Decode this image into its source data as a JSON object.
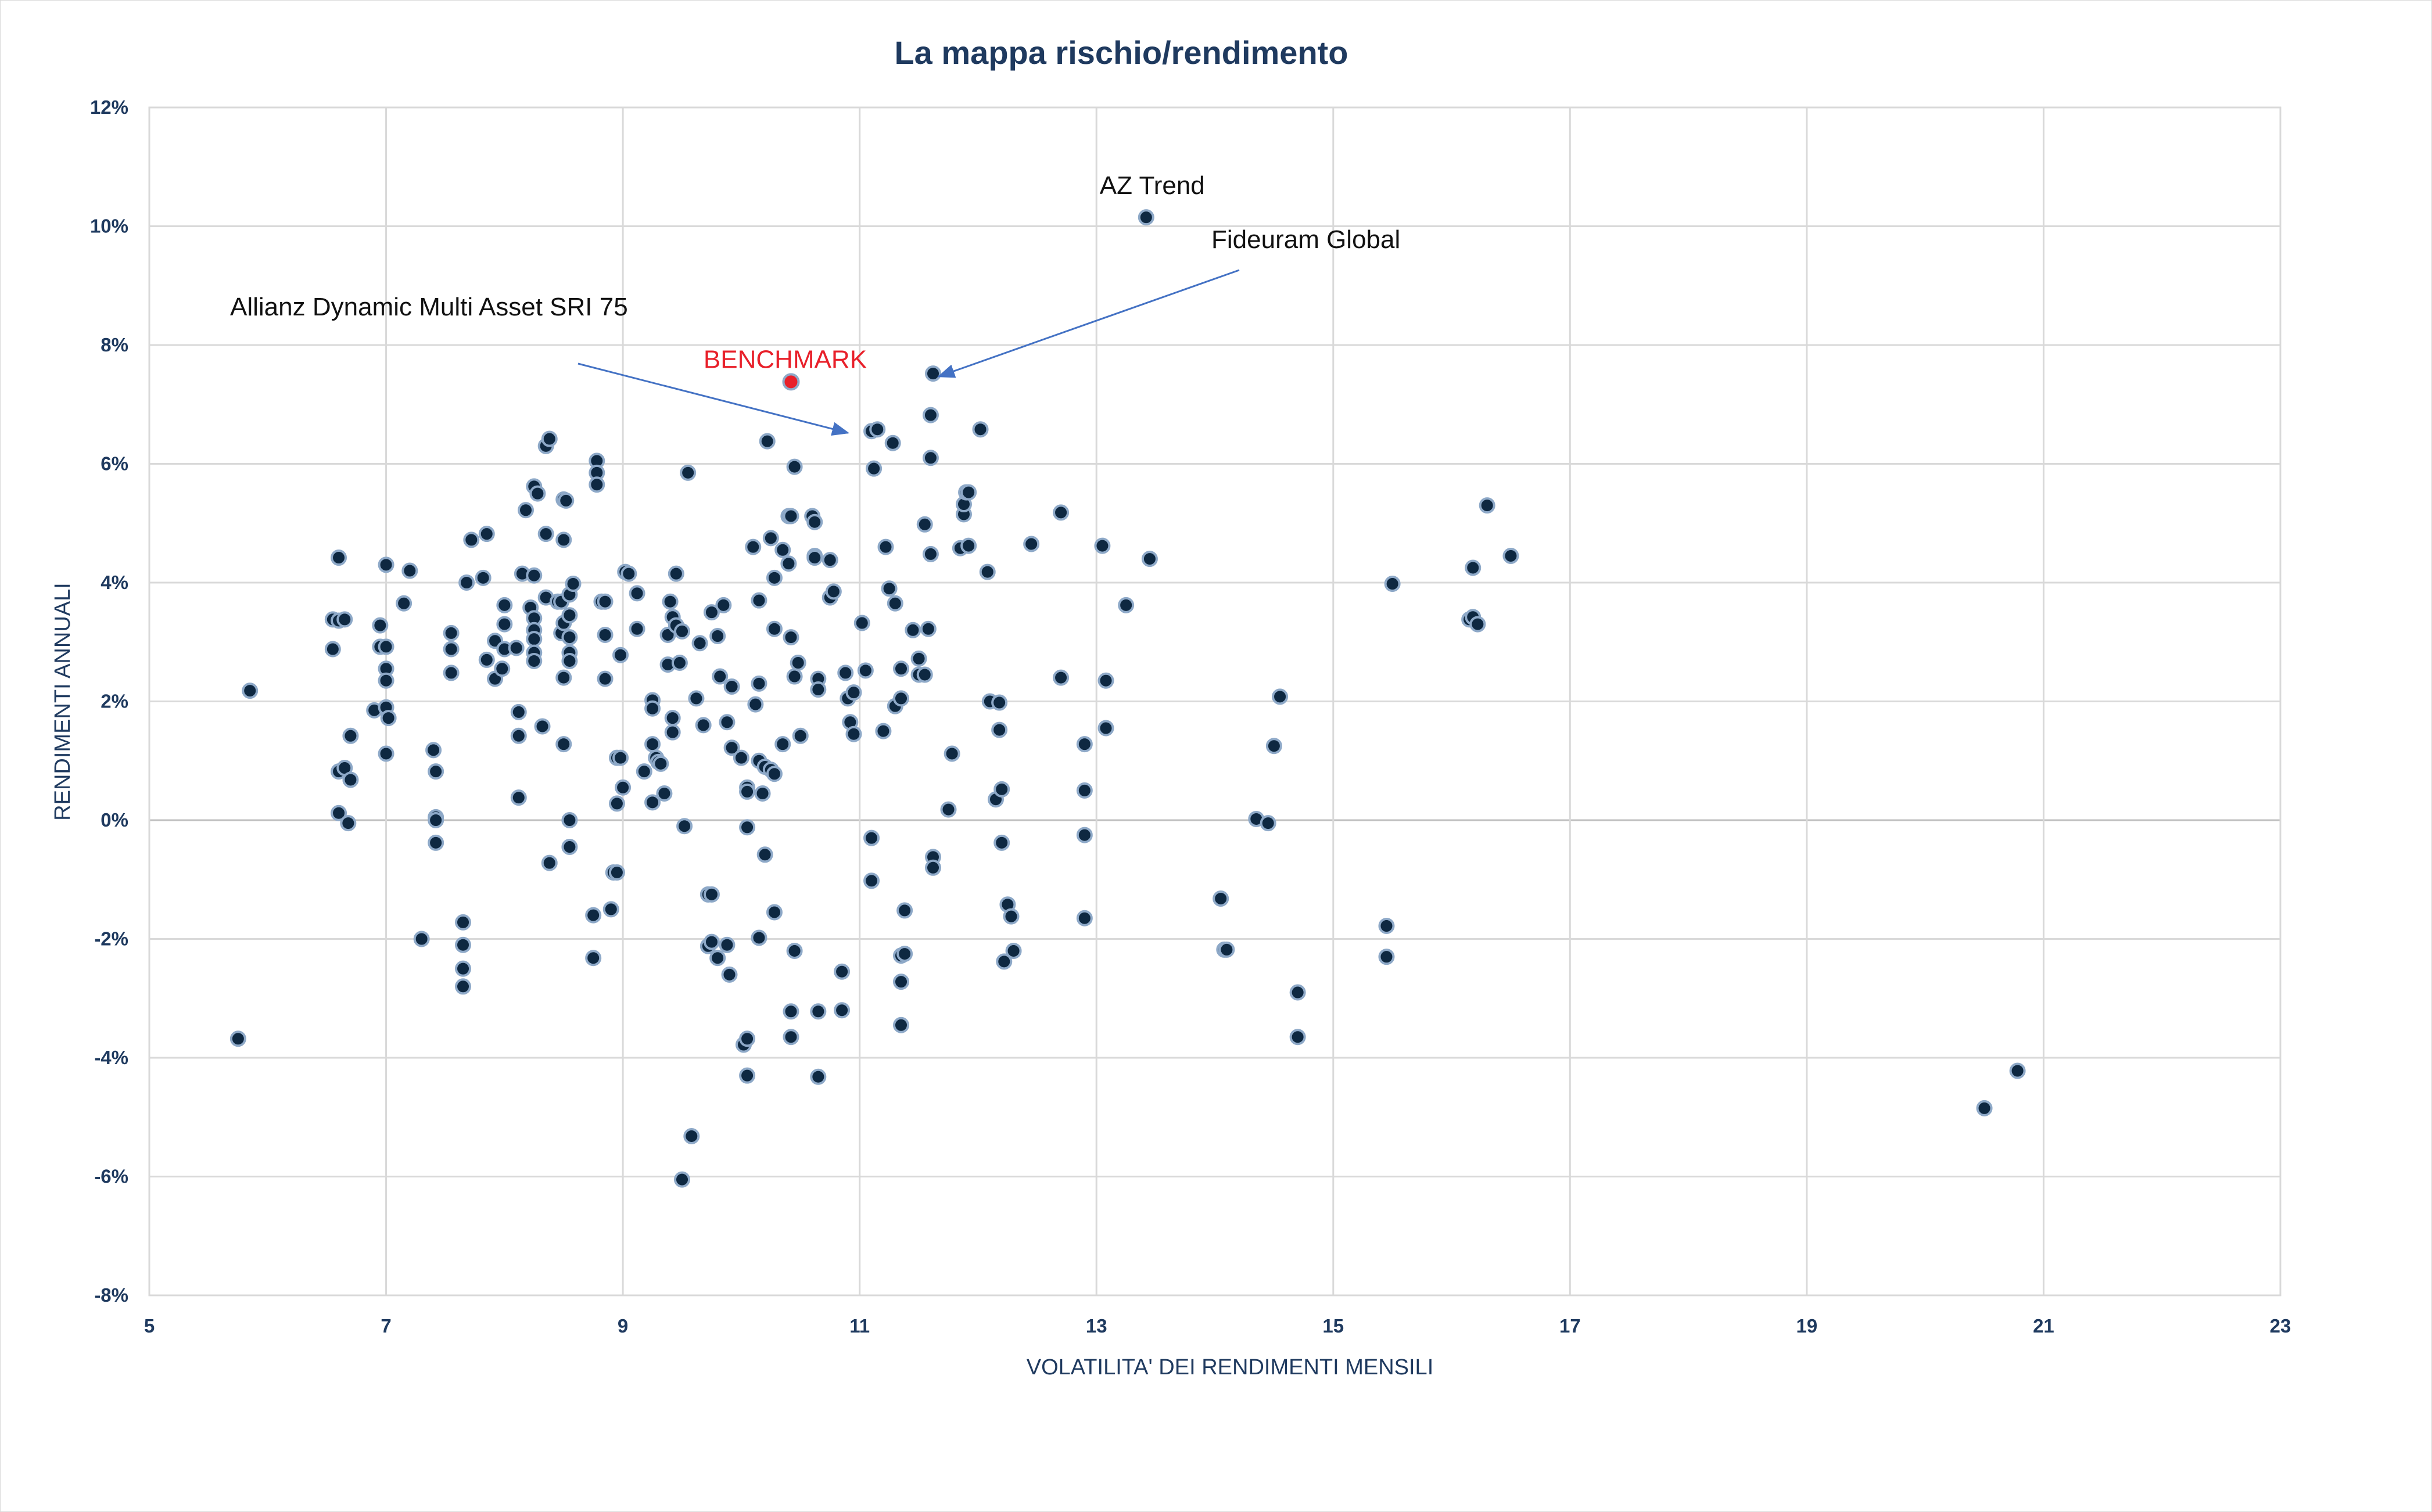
{
  "chart_data": {
    "type": "scatter",
    "title": "La mappa rischio/rendimento",
    "xlabel": "VOLATILITA' DEI RENDIMENTI MENSILI",
    "ylabel": "RENDIMENTI ANNUALI",
    "xlim": [
      5,
      23
    ],
    "ylim": [
      -8,
      12
    ],
    "x_ticks": [
      5,
      7,
      9,
      11,
      13,
      15,
      17,
      19,
      21,
      23
    ],
    "y_ticks": [
      -8,
      -6,
      -4,
      -2,
      0,
      2,
      4,
      6,
      8,
      10,
      12
    ],
    "x_tick_labels": [
      "5",
      "7",
      "9",
      "11",
      "13",
      "15",
      "17",
      "19",
      "21",
      "23"
    ],
    "y_tick_labels": [
      "-8%",
      "-6%",
      "-4%",
      "-2%",
      "0%",
      "2%",
      "4%",
      "6%",
      "8%",
      "10%",
      "12%"
    ],
    "grid": true,
    "colors": {
      "title": "#1f3a5f",
      "axis_text": "#1f3a5f",
      "marker_fill": "#0e2841",
      "marker_stroke": "#8ea9c8",
      "benchmark": "#e8202a",
      "arrow": "#4472c4",
      "grid": "#d9d9d9"
    },
    "series": [
      {
        "points": [
          [
            5.75,
            -3.68
          ],
          [
            5.85,
            2.18
          ],
          [
            6.55,
            3.38
          ],
          [
            6.6,
            3.36
          ],
          [
            6.65,
            3.38
          ],
          [
            6.55,
            2.88
          ],
          [
            6.6,
            4.42
          ],
          [
            6.6,
            0.82
          ],
          [
            6.65,
            0.88
          ],
          [
            6.6,
            0.12
          ],
          [
            6.7,
            0.68
          ],
          [
            6.68,
            -0.05
          ],
          [
            6.7,
            1.42
          ],
          [
            6.9,
            1.85
          ],
          [
            6.95,
            2.92
          ],
          [
            6.95,
            3.28
          ],
          [
            7.0,
            4.3
          ],
          [
            7.0,
            2.92
          ],
          [
            7.0,
            2.55
          ],
          [
            7.0,
            2.35
          ],
          [
            7.0,
            1.9
          ],
          [
            7.02,
            1.72
          ],
          [
            7.0,
            1.12
          ],
          [
            7.15,
            3.65
          ],
          [
            7.2,
            4.2
          ],
          [
            7.3,
            -2.0
          ],
          [
            7.4,
            1.18
          ],
          [
            7.42,
            0.82
          ],
          [
            7.42,
            0.05
          ],
          [
            7.42,
            0.0
          ],
          [
            7.42,
            -0.38
          ],
          [
            7.55,
            3.15
          ],
          [
            7.55,
            2.88
          ],
          [
            7.55,
            2.48
          ],
          [
            7.65,
            -1.72
          ],
          [
            7.65,
            -2.1
          ],
          [
            7.65,
            -2.5
          ],
          [
            7.65,
            -2.8
          ],
          [
            7.68,
            4.0
          ],
          [
            7.72,
            4.72
          ],
          [
            7.82,
            4.08
          ],
          [
            7.85,
            4.82
          ],
          [
            7.85,
            2.7
          ],
          [
            7.92,
            2.38
          ],
          [
            7.92,
            3.02
          ],
          [
            8.0,
            2.88
          ],
          [
            7.98,
            2.55
          ],
          [
            8.0,
            3.62
          ],
          [
            8.0,
            3.3
          ],
          [
            8.1,
            2.9
          ],
          [
            8.12,
            1.82
          ],
          [
            8.12,
            1.42
          ],
          [
            8.12,
            0.38
          ],
          [
            8.18,
            5.22
          ],
          [
            8.15,
            4.15
          ],
          [
            8.25,
            5.62
          ],
          [
            8.28,
            5.5
          ],
          [
            8.25,
            4.12
          ],
          [
            8.22,
            3.58
          ],
          [
            8.25,
            3.4
          ],
          [
            8.25,
            3.2
          ],
          [
            8.25,
            3.05
          ],
          [
            8.25,
            2.82
          ],
          [
            8.25,
            2.68
          ],
          [
            8.32,
            1.58
          ],
          [
            8.35,
            6.3
          ],
          [
            8.38,
            6.42
          ],
          [
            8.35,
            4.82
          ],
          [
            8.35,
            3.75
          ],
          [
            8.38,
            -0.72
          ],
          [
            8.45,
            3.68
          ],
          [
            8.48,
            3.68
          ],
          [
            8.48,
            3.15
          ],
          [
            8.5,
            5.4
          ],
          [
            8.52,
            5.38
          ],
          [
            8.5,
            4.72
          ],
          [
            8.5,
            3.32
          ],
          [
            8.5,
            2.4
          ],
          [
            8.5,
            1.28
          ],
          [
            8.55,
            3.8
          ],
          [
            8.55,
            3.45
          ],
          [
            8.55,
            3.08
          ],
          [
            8.55,
            2.82
          ],
          [
            8.55,
            2.68
          ],
          [
            8.58,
            3.98
          ],
          [
            8.55,
            0.0
          ],
          [
            8.55,
            -0.45
          ],
          [
            8.75,
            -1.6
          ],
          [
            8.75,
            -2.32
          ],
          [
            8.78,
            6.05
          ],
          [
            8.78,
            5.85
          ],
          [
            8.78,
            5.65
          ],
          [
            8.82,
            3.68
          ],
          [
            8.85,
            3.68
          ],
          [
            8.85,
            3.12
          ],
          [
            8.85,
            2.38
          ],
          [
            8.9,
            -1.5
          ],
          [
            8.92,
            -0.88
          ],
          [
            8.95,
            -0.88
          ],
          [
            8.95,
            1.05
          ],
          [
            8.98,
            1.05
          ],
          [
            8.98,
            2.78
          ],
          [
            8.95,
            0.28
          ],
          [
            9.0,
            0.55
          ],
          [
            9.02,
            4.18
          ],
          [
            9.05,
            4.15
          ],
          [
            9.12,
            3.82
          ],
          [
            9.12,
            3.22
          ],
          [
            9.18,
            0.82
          ],
          [
            9.25,
            2.02
          ],
          [
            9.25,
            1.88
          ],
          [
            9.25,
            1.28
          ],
          [
            9.28,
            1.05
          ],
          [
            9.3,
            0.98
          ],
          [
            9.32,
            0.95
          ],
          [
            9.25,
            0.3
          ],
          [
            9.35,
            0.45
          ],
          [
            9.38,
            2.62
          ],
          [
            9.4,
            3.68
          ],
          [
            9.42,
            3.42
          ],
          [
            9.38,
            3.12
          ],
          [
            9.45,
            3.28
          ],
          [
            9.42,
            1.72
          ],
          [
            9.42,
            1.48
          ],
          [
            9.45,
            4.15
          ],
          [
            9.48,
            2.65
          ],
          [
            9.5,
            3.18
          ],
          [
            9.5,
            -6.05
          ],
          [
            9.55,
            5.85
          ],
          [
            9.52,
            -0.1
          ],
          [
            9.58,
            -5.32
          ],
          [
            9.62,
            2.05
          ],
          [
            9.65,
            2.98
          ],
          [
            9.68,
            1.6
          ],
          [
            9.72,
            -1.25
          ],
          [
            9.75,
            -1.25
          ],
          [
            9.72,
            -2.12
          ],
          [
            9.75,
            -2.05
          ],
          [
            9.8,
            -2.32
          ],
          [
            9.75,
            3.5
          ],
          [
            9.8,
            3.1
          ],
          [
            9.82,
            2.42
          ],
          [
            9.85,
            3.62
          ],
          [
            9.88,
            1.65
          ],
          [
            9.88,
            -2.1
          ],
          [
            9.9,
            -2.6
          ],
          [
            9.92,
            2.25
          ],
          [
            9.92,
            1.22
          ],
          [
            10.0,
            1.05
          ],
          [
            10.05,
            0.55
          ],
          [
            10.05,
            0.48
          ],
          [
            10.02,
            -3.78
          ],
          [
            10.05,
            -3.68
          ],
          [
            10.05,
            -4.3
          ],
          [
            10.05,
            -0.12
          ],
          [
            10.1,
            4.6
          ],
          [
            10.12,
            1.95
          ],
          [
            10.15,
            3.7
          ],
          [
            10.15,
            2.3
          ],
          [
            10.15,
            1.0
          ],
          [
            10.18,
            0.45
          ],
          [
            10.15,
            -1.98
          ],
          [
            10.2,
            0.9
          ],
          [
            10.2,
            -0.58
          ],
          [
            10.22,
            6.38
          ],
          [
            10.25,
            0.85
          ],
          [
            10.25,
            4.75
          ],
          [
            10.28,
            4.08
          ],
          [
            10.28,
            3.22
          ],
          [
            10.28,
            0.78
          ],
          [
            10.28,
            -1.55
          ],
          [
            10.35,
            4.55
          ],
          [
            10.35,
            1.28
          ],
          [
            10.4,
            5.12
          ],
          [
            10.42,
            5.12
          ],
          [
            10.4,
            4.32
          ],
          [
            10.42,
            3.08
          ],
          [
            10.42,
            -3.22
          ],
          [
            10.42,
            -3.65
          ],
          [
            10.45,
            5.95
          ],
          [
            10.45,
            -2.2
          ],
          [
            10.45,
            2.42
          ],
          [
            10.48,
            2.65
          ],
          [
            10.5,
            1.42
          ],
          [
            10.6,
            5.12
          ],
          [
            10.62,
            5.02
          ],
          [
            10.62,
            4.45
          ],
          [
            10.65,
            2.38
          ],
          [
            10.65,
            2.2
          ],
          [
            10.62,
            4.42
          ],
          [
            10.65,
            -3.22
          ],
          [
            10.65,
            -4.32
          ],
          [
            10.75,
            4.38
          ],
          [
            10.75,
            3.75
          ],
          [
            10.78,
            3.85
          ],
          [
            10.85,
            -2.55
          ],
          [
            10.85,
            -3.2
          ],
          [
            10.88,
            2.48
          ],
          [
            10.9,
            2.05
          ],
          [
            10.92,
            1.65
          ],
          [
            10.95,
            2.15
          ],
          [
            10.95,
            1.45
          ],
          [
            11.02,
            3.32
          ],
          [
            11.05,
            2.52
          ],
          [
            11.1,
            6.55
          ],
          [
            11.12,
            5.92
          ],
          [
            11.15,
            6.58
          ],
          [
            11.1,
            -0.3
          ],
          [
            11.1,
            -1.02
          ],
          [
            11.2,
            1.5
          ],
          [
            11.22,
            4.6
          ],
          [
            11.25,
            3.9
          ],
          [
            11.28,
            6.35
          ],
          [
            11.3,
            3.65
          ],
          [
            11.3,
            1.92
          ],
          [
            11.35,
            2.05
          ],
          [
            11.35,
            2.55
          ],
          [
            11.35,
            -2.28
          ],
          [
            11.38,
            -2.25
          ],
          [
            11.38,
            -1.52
          ],
          [
            11.35,
            -2.72
          ],
          [
            11.35,
            -3.45
          ],
          [
            11.45,
            3.2
          ],
          [
            11.5,
            2.72
          ],
          [
            11.5,
            2.45
          ],
          [
            11.55,
            4.98
          ],
          [
            11.55,
            2.45
          ],
          [
            11.58,
            3.22
          ],
          [
            11.6,
            4.48
          ],
          [
            11.6,
            6.1
          ],
          [
            11.6,
            6.82
          ],
          [
            11.62,
            7.52
          ],
          [
            11.62,
            -0.62
          ],
          [
            11.62,
            -0.8
          ],
          [
            11.75,
            0.18
          ],
          [
            11.78,
            1.12
          ],
          [
            11.85,
            4.58
          ],
          [
            11.88,
            5.15
          ],
          [
            11.88,
            5.32
          ],
          [
            11.9,
            5.52
          ],
          [
            11.92,
            5.52
          ],
          [
            11.92,
            4.62
          ],
          [
            12.02,
            6.58
          ],
          [
            12.08,
            4.18
          ],
          [
            12.1,
            2.0
          ],
          [
            12.15,
            0.35
          ],
          [
            12.18,
            1.98
          ],
          [
            12.18,
            1.52
          ],
          [
            12.2,
            0.52
          ],
          [
            12.2,
            -0.38
          ],
          [
            12.22,
            -2.38
          ],
          [
            12.25,
            -1.42
          ],
          [
            12.28,
            -1.62
          ],
          [
            12.3,
            -2.2
          ],
          [
            12.45,
            4.65
          ],
          [
            12.7,
            5.18
          ],
          [
            12.7,
            2.4
          ],
          [
            12.9,
            1.28
          ],
          [
            12.9,
            0.5
          ],
          [
            12.9,
            -0.25
          ],
          [
            12.9,
            -1.65
          ],
          [
            13.05,
            4.62
          ],
          [
            13.08,
            2.35
          ],
          [
            13.08,
            1.55
          ],
          [
            13.25,
            3.62
          ],
          [
            13.42,
            10.15
          ],
          [
            13.45,
            4.4
          ],
          [
            14.05,
            -1.32
          ],
          [
            14.08,
            -2.18
          ],
          [
            14.1,
            -2.18
          ],
          [
            14.35,
            0.02
          ],
          [
            14.45,
            -0.05
          ],
          [
            14.5,
            1.25
          ],
          [
            14.55,
            2.08
          ],
          [
            14.7,
            -2.9
          ],
          [
            14.7,
            -3.65
          ],
          [
            15.45,
            -1.78
          ],
          [
            15.45,
            -2.3
          ],
          [
            15.5,
            3.98
          ],
          [
            16.15,
            3.38
          ],
          [
            16.18,
            3.42
          ],
          [
            16.18,
            4.25
          ],
          [
            16.22,
            3.3
          ],
          [
            16.3,
            5.3
          ],
          [
            16.5,
            4.45
          ],
          [
            20.5,
            -4.85
          ],
          [
            20.78,
            -4.22
          ]
        ]
      }
    ],
    "benchmark": {
      "label": "BENCHMARK",
      "x": 10.42,
      "y": 7.38
    },
    "annotations": [
      {
        "text": "AZ Trend",
        "target": [
          13.42,
          10.15
        ]
      },
      {
        "text": "Fideuram Global",
        "target": [
          11.62,
          7.52
        ]
      },
      {
        "text": "Allianz Dynamic Multi Asset SRI 75",
        "target": [
          10.9,
          6.6
        ]
      }
    ]
  }
}
